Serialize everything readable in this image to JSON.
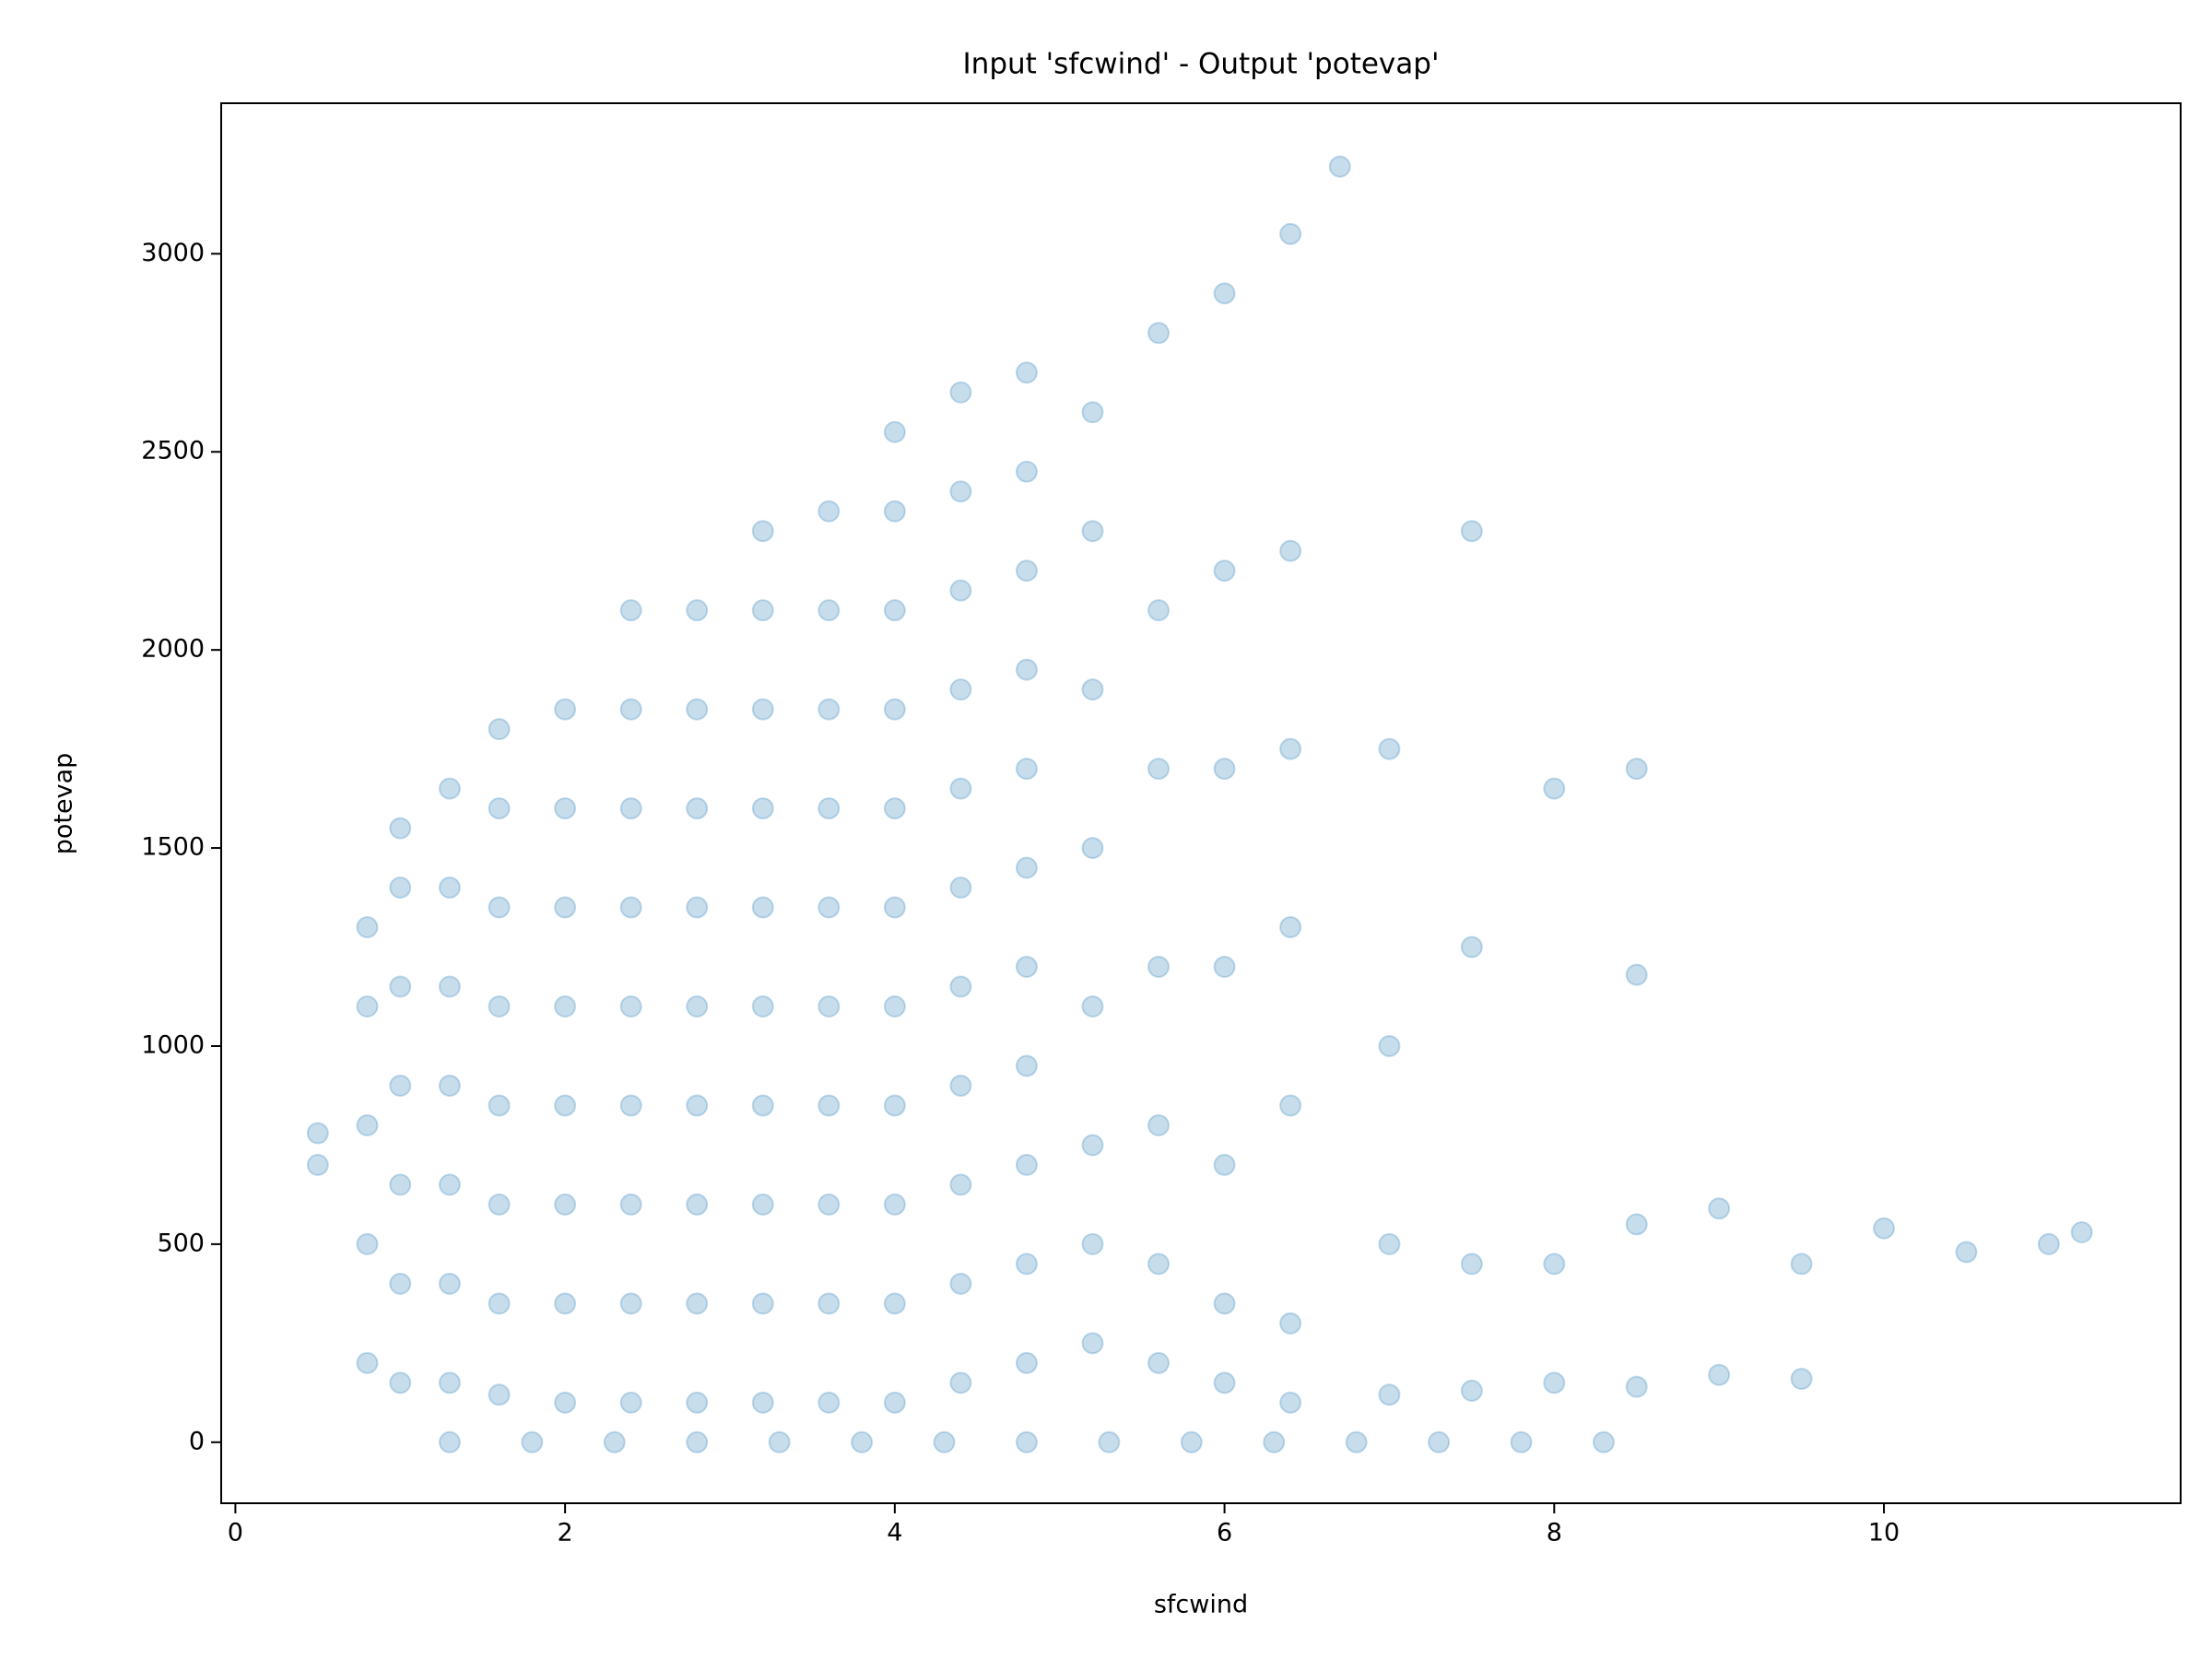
{
  "chart_data": {
    "type": "scatter",
    "title": "Input 'sfcwind' - Output 'potevap'",
    "x_label": "sfcwind",
    "y_label": "potevap",
    "color": "#1f77b4",
    "x": [
      0.5,
      0.5,
      0.8,
      0.8,
      0.8,
      0.8,
      0.8,
      1.0,
      1.0,
      1.0,
      1.0,
      1.0,
      1.0,
      1.0,
      1.3,
      1.3,
      1.3,
      1.3,
      1.3,
      1.3,
      1.3,
      1.6,
      1.6,
      1.6,
      1.6,
      1.6,
      1.6,
      1.6,
      1.6,
      2.0,
      2.0,
      2.0,
      2.0,
      2.0,
      2.0,
      2.0,
      2.0,
      2.4,
      2.4,
      2.4,
      2.4,
      2.4,
      2.4,
      2.4,
      2.4,
      2.4,
      2.8,
      2.8,
      2.8,
      2.8,
      2.8,
      2.8,
      2.8,
      2.8,
      2.8,
      3.2,
      3.2,
      3.2,
      3.2,
      3.2,
      3.2,
      3.2,
      3.2,
      3.2,
      3.2,
      3.6,
      3.6,
      3.6,
      3.6,
      3.6,
      3.6,
      3.6,
      3.6,
      3.6,
      3.6,
      4.0,
      4.0,
      4.0,
      4.0,
      4.0,
      4.0,
      4.0,
      4.0,
      4.0,
      4.0,
      4.0,
      4.4,
      4.4,
      4.4,
      4.4,
      4.4,
      4.4,
      4.4,
      4.4,
      4.4,
      4.4,
      4.4,
      4.8,
      4.8,
      4.8,
      4.8,
      4.8,
      4.8,
      4.8,
      4.8,
      4.8,
      4.8,
      4.8,
      5.2,
      5.2,
      5.2,
      5.2,
      5.2,
      5.2,
      5.2,
      5.2,
      5.6,
      5.6,
      5.6,
      5.6,
      5.6,
      5.6,
      5.6,
      6.0,
      6.0,
      6.0,
      6.0,
      6.0,
      6.0,
      6.0,
      6.4,
      6.4,
      6.4,
      6.4,
      6.4,
      6.4,
      6.4,
      6.7,
      7.0,
      7.0,
      7.0,
      7.0,
      7.5,
      7.5,
      7.5,
      7.5,
      8.0,
      8.0,
      8.0,
      8.5,
      8.5,
      8.5,
      8.5,
      9.0,
      9.0,
      9.5,
      9.5,
      10.0,
      10.5,
      11.0,
      11.2,
      1.3,
      1.8,
      2.3,
      2.8,
      3.3,
      3.8,
      4.3,
      4.8,
      5.3,
      5.8,
      6.3,
      6.8,
      7.3,
      7.8,
      8.3
    ],
    "values": [
      700,
      780,
      200,
      500,
      800,
      1100,
      1300,
      150,
      400,
      650,
      900,
      1150,
      1400,
      1550,
      150,
      400,
      650,
      900,
      1150,
      1400,
      1650,
      120,
      350,
      600,
      850,
      1100,
      1350,
      1600,
      1800,
      100,
      350,
      600,
      850,
      1100,
      1350,
      1600,
      1850,
      100,
      350,
      600,
      850,
      1100,
      1350,
      1600,
      1850,
      2100,
      100,
      350,
      600,
      850,
      1100,
      1350,
      1600,
      1850,
      2100,
      100,
      350,
      600,
      850,
      1100,
      1350,
      1600,
      1850,
      2100,
      2300,
      100,
      350,
      600,
      850,
      1100,
      1350,
      1600,
      1850,
      2100,
      2350,
      100,
      350,
      600,
      850,
      1100,
      1350,
      1600,
      1850,
      2100,
      2350,
      2550,
      150,
      400,
      650,
      900,
      1150,
      1400,
      1650,
      1900,
      2150,
      2400,
      2650,
      200,
      450,
      700,
      950,
      1200,
      1450,
      1700,
      1950,
      2200,
      2450,
      2700,
      250,
      500,
      750,
      1100,
      1500,
      1900,
      2300,
      2600,
      200,
      450,
      800,
      1200,
      1700,
      2100,
      2800,
      150,
      350,
      700,
      1200,
      1700,
      2200,
      2900,
      100,
      300,
      850,
      1300,
      1750,
      2250,
      3050,
      3220,
      120,
      500,
      1000,
      1750,
      130,
      450,
      1250,
      2300,
      150,
      450,
      1650,
      140,
      550,
      1180,
      1700,
      170,
      590,
      160,
      450,
      540,
      480,
      500,
      530,
      0,
      0,
      0,
      0,
      0,
      0,
      0,
      0,
      0,
      0,
      0,
      0,
      0,
      0,
      0
    ],
    "xlim": [
      -0.086,
      11.8
    ],
    "ylim": [
      -154,
      3380
    ],
    "xticks": [
      0,
      2,
      4,
      6,
      8,
      10
    ],
    "yticks": [
      0,
      500,
      1000,
      1500,
      2000,
      2500,
      3000
    ]
  }
}
